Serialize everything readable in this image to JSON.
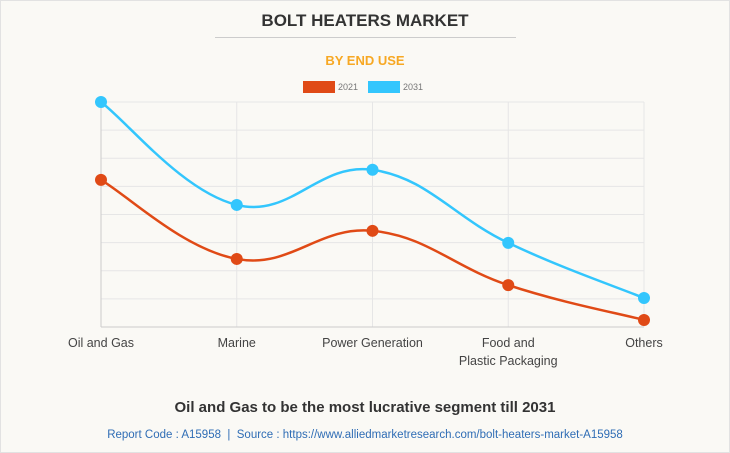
{
  "chart_data": {
    "type": "line",
    "title": "BOLT HEATERS MARKET",
    "subtitle": "BY END USE",
    "categories": [
      "Oil and Gas",
      "Marine",
      "Power Generation",
      "Food and\nPlastic Packaging",
      "Others"
    ],
    "category_lines": [
      [
        "Oil and Gas"
      ],
      [
        "Marine"
      ],
      [
        "Power Generation"
      ],
      [
        "Food and",
        "Plastic Packaging"
      ],
      [
        "Others"
      ]
    ],
    "series": [
      {
        "name": "2021",
        "color": "#e04a16",
        "values": [
          5.23,
          2.42,
          3.42,
          1.49,
          0.25
        ]
      },
      {
        "name": "2031",
        "color": "#33c6fd",
        "values": [
          8.0,
          4.34,
          5.59,
          2.99,
          1.03
        ]
      }
    ],
    "ylim": [
      0,
      8
    ],
    "y_tick_labels_shown": false,
    "grid": true,
    "legend_position": "top-center",
    "xlabel": "",
    "ylabel": ""
  },
  "footer": {
    "headline": "Oil and Gas to be the most lucrative segment till 2031",
    "source": "Report Code : A15958  |  Source : https://www.alliedmarketresearch.com/bolt-heaters-market-A15958"
  }
}
